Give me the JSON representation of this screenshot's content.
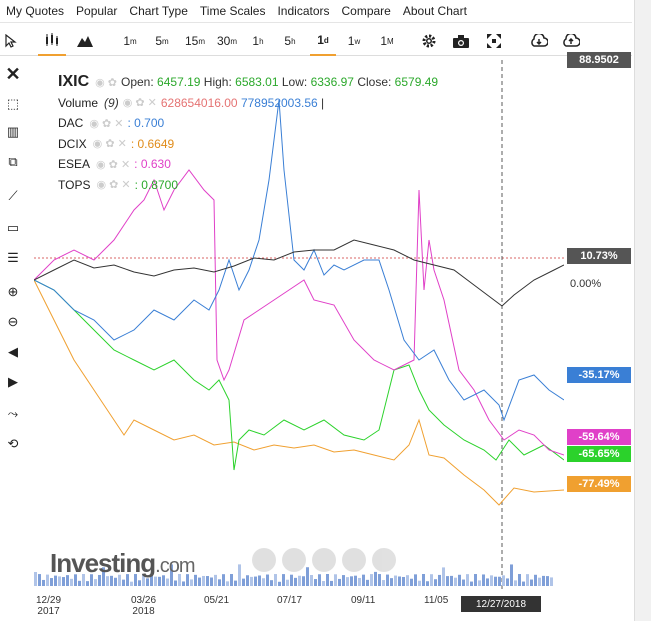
{
  "menu": [
    "My Quotes",
    "Popular",
    "Chart Type",
    "Time Scales",
    "Indicators",
    "Compare",
    "About Chart"
  ],
  "toolbar": {
    "timeframes": [
      {
        "base": "1",
        "sup": "m"
      },
      {
        "base": "5",
        "sup": "m"
      },
      {
        "base": "15",
        "sup": "m"
      },
      {
        "base": "30",
        "sup": "m"
      },
      {
        "base": "1",
        "sup": "h"
      },
      {
        "base": "5",
        "sup": "h"
      },
      {
        "base": "1",
        "sup": "d"
      },
      {
        "base": "1",
        "sup": "w"
      },
      {
        "base": "1",
        "sup": "M"
      }
    ],
    "active_timeframe": "1d"
  },
  "legend": {
    "main": {
      "name": "IXIC",
      "open_label": "Open:",
      "open": "6457.19",
      "high_label": "High:",
      "high": "6583.01",
      "low_label": "Low:",
      "low": "6336.97",
      "close_label": "Close:",
      "close": "6579.49"
    },
    "volume": {
      "name": "Volume",
      "period": "(9)",
      "v1": "628654016.00",
      "v2": "778952003.56",
      "sep": "|"
    },
    "compare": [
      {
        "name": "DAC",
        "value": ": 0.700",
        "color": "#3a7fd5"
      },
      {
        "name": "DCIX",
        "value": ": 0.6649",
        "color": "#e08c1a"
      },
      {
        "name": "ESEA",
        "value": ": 0.630",
        "color": "#e040c8"
      },
      {
        "name": "TOPS",
        "value": ": 0.8700",
        "color": "#2bb52b"
      }
    ]
  },
  "axis_badges": [
    {
      "text": "88.9502",
      "color": "#555"
    },
    {
      "text": "10.73%",
      "color": "#555"
    },
    {
      "text": "0.00%",
      "color": "none"
    },
    {
      "text": "-35.17%",
      "color": "#3a7fd5"
    },
    {
      "text": "-59.64%",
      "color": "#e040c8"
    },
    {
      "text": "-65.65%",
      "color": "#2bd22b"
    },
    {
      "text": "-77.49%",
      "color": "#f0a030"
    }
  ],
  "x_labels": [
    {
      "line1": "12/29",
      "line2": "2017"
    },
    {
      "line1": "03/26",
      "line2": "2018"
    },
    {
      "line1": "05/21",
      "line2": ""
    },
    {
      "line1": "07/17",
      "line2": ""
    },
    {
      "line1": "09/11",
      "line2": ""
    },
    {
      "line1": "11/05",
      "line2": ""
    }
  ],
  "crosshair_date": "12/27/2018",
  "brand": {
    "name": "Investing",
    "suffix": ".com"
  },
  "chart_data": {
    "type": "line",
    "title": "IXIC",
    "y_unit": "percent change",
    "series": [
      {
        "name": "IXIC",
        "color": "#333333",
        "last": 10.73
      },
      {
        "name": "DAC",
        "color": "#3a7fd5",
        "last": -35.17
      },
      {
        "name": "ESEA",
        "color": "#e040c8",
        "last": -59.64
      },
      {
        "name": "TOPS",
        "color": "#2bd22b",
        "last": -65.65
      },
      {
        "name": "DCIX",
        "color": "#f0a030",
        "last": -77.49
      }
    ]
  }
}
